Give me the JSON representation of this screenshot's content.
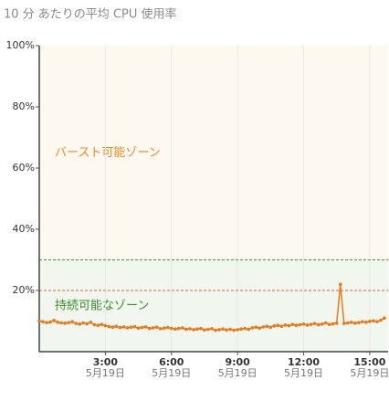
{
  "chart_data": {
    "type": "line",
    "title": "10 分 あたりの平均 CPU 使用率",
    "x": [
      0,
      10,
      20,
      30,
      40,
      50,
      60,
      70,
      80,
      90,
      100,
      110,
      120,
      130,
      140,
      150,
      160,
      170,
      180,
      190,
      200,
      210,
      220,
      230,
      240,
      250,
      260,
      270,
      280,
      290,
      300,
      310,
      320,
      330,
      340,
      350,
      360,
      370,
      380,
      390,
      400,
      410,
      420,
      430,
      440,
      450,
      460,
      470,
      480,
      490,
      500,
      510,
      520,
      530,
      540,
      550,
      560,
      570,
      580,
      590,
      600,
      610,
      620,
      630,
      640,
      650,
      660,
      670,
      680,
      690,
      700,
      710,
      720,
      730,
      740,
      750,
      760,
      770,
      780,
      790,
      800,
      810,
      820,
      830,
      840,
      850,
      860,
      870,
      880,
      890,
      900,
      910,
      920,
      930,
      940
    ],
    "series": [
      {
        "color": "#e8791a",
        "values": [
          10,
          9.8,
          9.5,
          9.7,
          10.2,
          9.6,
          9.4,
          9.3,
          9.5,
          9.8,
          9.2,
          9.0,
          9.4,
          9.1,
          9.6,
          8.8,
          8.6,
          8.9,
          8.5,
          8.2,
          8.0,
          8.3,
          7.9,
          8.1,
          7.8,
          8.0,
          8.2,
          7.7,
          7.9,
          8.1,
          7.6,
          7.8,
          8.0,
          7.5,
          7.7,
          7.9,
          7.6,
          7.4,
          7.6,
          7.8,
          7.3,
          7.5,
          7.2,
          7.4,
          7.6,
          7.1,
          7.3,
          7.5,
          7.0,
          7.2,
          7.4,
          7.1,
          7.3,
          7.0,
          7.2,
          7.4,
          7.6,
          7.3,
          7.8,
          8.0,
          7.7,
          8.1,
          8.3,
          8.0,
          8.4,
          8.6,
          8.3,
          8.7,
          8.5,
          8.9,
          8.6,
          8.8,
          9.0,
          8.7,
          8.9,
          9.2,
          8.8,
          9.0,
          9.4,
          8.9,
          9.1,
          9.3,
          22,
          9.2,
          9.4,
          9.6,
          9.3,
          9.5,
          9.8,
          9.6,
          9.9,
          10.1,
          9.8,
          10.3,
          11
        ]
      }
    ],
    "xlim": [
      0,
      950
    ],
    "xticks": [
      {
        "value": 180,
        "label": "3:00"
      },
      {
        "value": 360,
        "label": "6:00"
      },
      {
        "value": 540,
        "label": "9:00"
      },
      {
        "value": 720,
        "label": "12:00"
      },
      {
        "value": 900,
        "label": "15:00"
      }
    ],
    "xtick_dates": [
      "5月19日",
      "5月19日",
      "5月19日",
      "5月19日",
      "5月19日"
    ],
    "ylim": [
      0,
      100
    ],
    "yticks": [
      {
        "value": 20,
        "label": "20%"
      },
      {
        "value": 40,
        "label": "40%"
      },
      {
        "value": 60,
        "label": "60%"
      },
      {
        "value": 80,
        "label": "80%"
      },
      {
        "value": 100,
        "label": "100%"
      }
    ],
    "thresholds": [
      {
        "value": 30,
        "color": "#4a9a3a"
      },
      {
        "value": 20,
        "color": "#e0604a"
      }
    ],
    "zones": [
      {
        "label": "バースト可能ゾーン",
        "color": "#f08a20",
        "background": "#fdf8f0",
        "label_at": 65
      },
      {
        "label": "持続可能なゾーン",
        "color": "#3d8a2a",
        "background": "#f1f7ee",
        "label_at": 15
      }
    ]
  }
}
